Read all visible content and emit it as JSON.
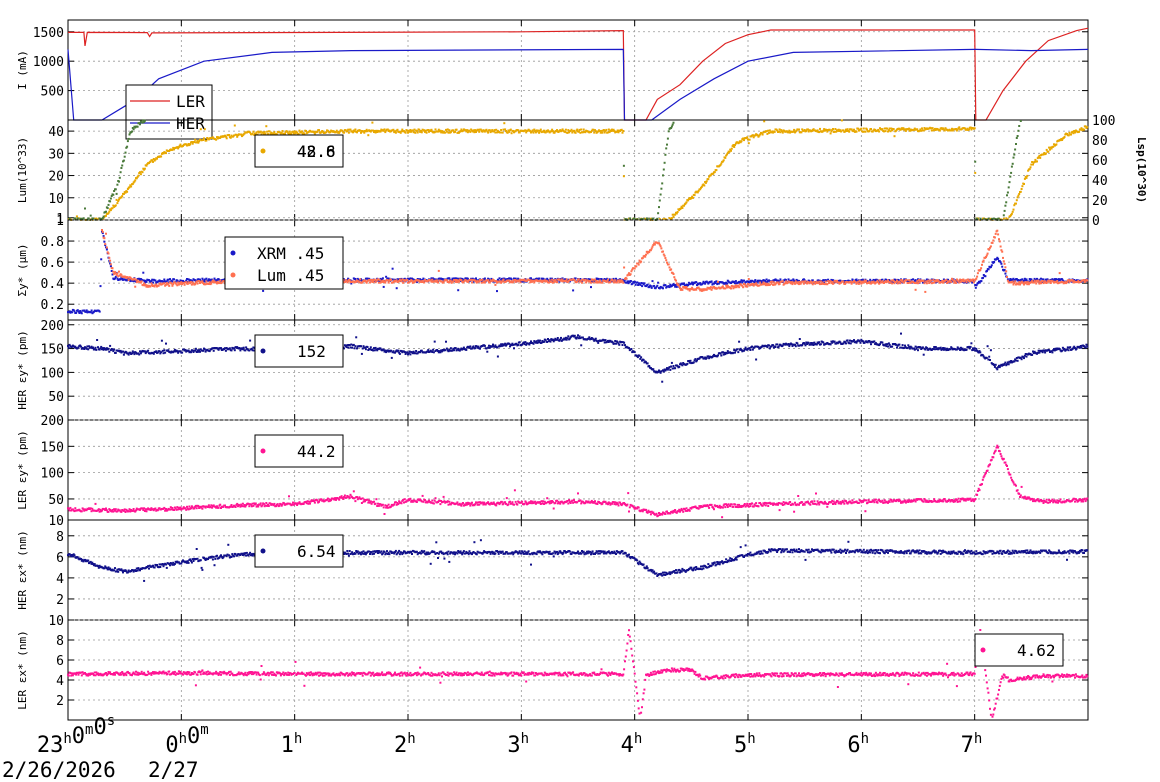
{
  "chart_data": {
    "type": "line",
    "x_ticks": [
      {
        "h": 0,
        "base": "23",
        "sup": "h",
        "base2": "0",
        "sup2": "m",
        "base3": "0",
        "sup3": "s"
      },
      {
        "h": 1,
        "base": "0",
        "sup": "h",
        "base2": "0",
        "sup2": "m"
      },
      {
        "h": 2,
        "base": "1",
        "sup": "h"
      },
      {
        "h": 3,
        "base": "2",
        "sup": "h"
      },
      {
        "h": 4,
        "base": "3",
        "sup": "h"
      },
      {
        "h": 5,
        "base": "4",
        "sup": "h"
      },
      {
        "h": 6,
        "base": "5",
        "sup": "h"
      },
      {
        "h": 7,
        "base": "6",
        "sup": "h"
      },
      {
        "h": 8,
        "base": "7",
        "sup": "h"
      }
    ],
    "dates": [
      "2/26/2026",
      "2/27"
    ],
    "xlim": [
      0,
      9.0
    ],
    "panels": [
      {
        "id": "current",
        "ylabel": "I (mA)",
        "ylim": [
          0,
          1700
        ],
        "yticks": [
          500,
          1000,
          1500
        ],
        "legend": [
          {
            "label": "LER",
            "color": "#dd2222"
          },
          {
            "label": "HER",
            "color": "#1a1ac8"
          }
        ],
        "series": [
          {
            "name": "LER",
            "color": "#dd2222",
            "style": "line",
            "points": [
              [
                0,
                1490
              ],
              [
                0.1,
                1490
              ],
              [
                0.14,
                1490
              ],
              [
                0.15,
                1260
              ],
              [
                0.17,
                1490
              ],
              [
                0.7,
                1485
              ],
              [
                0.72,
                1420
              ],
              [
                0.74,
                1480
              ],
              [
                4.0,
                1500
              ],
              [
                4.9,
                1520
              ],
              [
                4.91,
                0
              ],
              [
                5.1,
                0
              ],
              [
                5.2,
                350
              ],
              [
                5.4,
                600
              ],
              [
                5.6,
                1000
              ],
              [
                5.8,
                1300
              ],
              [
                6.0,
                1450
              ],
              [
                6.2,
                1530
              ],
              [
                7.2,
                1530
              ],
              [
                8.0,
                1530
              ],
              [
                8.01,
                0
              ],
              [
                8.1,
                0
              ],
              [
                8.25,
                500
              ],
              [
                8.45,
                1000
              ],
              [
                8.65,
                1350
              ],
              [
                8.9,
                1520
              ],
              [
                9.0,
                1560
              ]
            ]
          },
          {
            "name": "HER",
            "color": "#1a1ac8",
            "style": "line",
            "points": [
              [
                0,
                1200
              ],
              [
                0.05,
                0
              ],
              [
                0.3,
                0
              ],
              [
                0.6,
                350
              ],
              [
                0.8,
                700
              ],
              [
                1.2,
                1000
              ],
              [
                1.8,
                1150
              ],
              [
                2.5,
                1180
              ],
              [
                4.9,
                1200
              ],
              [
                4.91,
                0
              ],
              [
                5.15,
                0
              ],
              [
                5.4,
                350
              ],
              [
                5.7,
                700
              ],
              [
                6.0,
                1000
              ],
              [
                6.4,
                1150
              ],
              [
                8.0,
                1200
              ],
              [
                8.01,
                1200
              ],
              [
                8.5,
                1180
              ],
              [
                9.0,
                1200
              ]
            ]
          }
        ]
      },
      {
        "id": "lum",
        "ylabel": "Lum(10^33)",
        "y2label": "Lsp(10^30)",
        "ylim": [
          0,
          45
        ],
        "yticks": [
          1,
          10,
          20,
          30,
          40
        ],
        "y2lim": [
          0,
          100
        ],
        "y2ticks": [
          0,
          20,
          40,
          60,
          80,
          100
        ],
        "legend": [
          {
            "label": "48.8",
            "color": "#e8a800"
          },
          {
            "label": "42.6",
            "color": "#e8a800"
          }
        ],
        "series": [
          {
            "name": "Lum",
            "color": "#e8a800",
            "style": "dots",
            "points": [
              [
                0,
                0
              ],
              [
                0.3,
                0
              ],
              [
                0.5,
                12
              ],
              [
                0.7,
                25
              ],
              [
                0.9,
                32
              ],
              [
                1.2,
                36
              ],
              [
                1.6,
                39
              ],
              [
                2.5,
                40
              ],
              [
                4.9,
                40
              ],
              [
                4.91,
                0
              ],
              [
                5.3,
                0
              ],
              [
                5.6,
                15
              ],
              [
                5.9,
                35
              ],
              [
                6.2,
                40
              ],
              [
                8.0,
                41
              ],
              [
                8.01,
                0
              ],
              [
                8.3,
                0
              ],
              [
                8.5,
                25
              ],
              [
                8.8,
                38
              ],
              [
                9.0,
                42
              ]
            ]
          },
          {
            "name": "Lsp",
            "color": "#4a7a3a",
            "style": "dots",
            "points": [
              [
                0,
                0
              ],
              [
                0.3,
                0
              ],
              [
                0.45,
                18
              ],
              [
                0.55,
                40
              ],
              [
                0.8,
                50
              ],
              [
                1.1,
                55
              ],
              [
                1.6,
                52
              ],
              [
                4.9,
                50
              ],
              [
                4.91,
                0
              ],
              [
                5.2,
                0
              ],
              [
                5.3,
                40
              ],
              [
                5.6,
                68
              ],
              [
                5.9,
                55
              ],
              [
                6.2,
                52
              ],
              [
                8.0,
                52
              ],
              [
                8.01,
                0
              ],
              [
                8.25,
                0
              ],
              [
                8.4,
                45
              ],
              [
                8.7,
                55
              ],
              [
                9.0,
                52
              ]
            ]
          }
        ]
      },
      {
        "id": "sigma",
        "ylabel": "Σy* (μm)",
        "ylim": [
          0.05,
          1.0
        ],
        "yticks": [
          0.2,
          0.4,
          0.6,
          0.8,
          1
        ],
        "legend": [
          {
            "label": "XRM  .45",
            "color": "#1a1ac8"
          },
          {
            "label": "Lum  .45",
            "color": "#ff7050"
          }
        ],
        "series": [
          {
            "name": "XRM",
            "color": "#1a1ac8",
            "style": "dots",
            "points": [
              [
                0,
                0.13
              ],
              [
                0.28,
                0.13
              ],
              [
                0.3,
                0.9
              ],
              [
                0.4,
                0.45
              ],
              [
                0.7,
                0.42
              ],
              [
                1.5,
                0.43
              ],
              [
                4.9,
                0.43
              ],
              [
                4.91,
                0.42
              ],
              [
                5.2,
                0.36
              ],
              [
                5.6,
                0.4
              ],
              [
                6.2,
                0.42
              ],
              [
                8.0,
                0.42
              ],
              [
                8.01,
                0.36
              ],
              [
                8.2,
                0.65
              ],
              [
                8.3,
                0.43
              ],
              [
                9.0,
                0.42
              ]
            ]
          },
          {
            "name": "Lum",
            "color": "#ff7050",
            "style": "dots",
            "points": [
              [
                0.3,
                0.9
              ],
              [
                0.4,
                0.5
              ],
              [
                0.7,
                0.38
              ],
              [
                1.5,
                0.42
              ],
              [
                4.9,
                0.42
              ],
              [
                5.2,
                0.8
              ],
              [
                5.4,
                0.35
              ],
              [
                5.6,
                0.34
              ],
              [
                6.2,
                0.4
              ],
              [
                8.0,
                0.42
              ],
              [
                8.2,
                0.9
              ],
              [
                8.3,
                0.4
              ],
              [
                9.0,
                0.42
              ]
            ]
          }
        ]
      },
      {
        "id": "her_ey",
        "ylabel": "HER εy* (pm)",
        "ylim": [
          0,
          210
        ],
        "yticks": [
          50,
          100,
          150,
          200
        ],
        "legend": [
          {
            "label": "152",
            "color": "#11118a"
          }
        ],
        "series": [
          {
            "name": "HER εy*",
            "color": "#11118a",
            "style": "dots",
            "points": [
              [
                0,
                155
              ],
              [
                0.3,
                150
              ],
              [
                0.5,
                140
              ],
              [
                1.0,
                145
              ],
              [
                1.5,
                150
              ],
              [
                2.0,
                145
              ],
              [
                2.5,
                155
              ],
              [
                3.0,
                140
              ],
              [
                3.5,
                150
              ],
              [
                4.0,
                160
              ],
              [
                4.5,
                175
              ],
              [
                4.9,
                160
              ],
              [
                5.2,
                100
              ],
              [
                5.6,
                130
              ],
              [
                6.0,
                150
              ],
              [
                6.5,
                160
              ],
              [
                7.0,
                165
              ],
              [
                7.5,
                150
              ],
              [
                8.0,
                150
              ],
              [
                8.2,
                110
              ],
              [
                8.5,
                140
              ],
              [
                9.0,
                155
              ]
            ]
          }
        ]
      },
      {
        "id": "ler_ey",
        "ylabel": "LER εy* (pm)",
        "ylim": [
          10,
          200
        ],
        "yticks": [
          10,
          50,
          100,
          150,
          200
        ],
        "legend": [
          {
            "label": "44.2",
            "color": "#ff1493"
          }
        ],
        "series": [
          {
            "name": "LER εy*",
            "color": "#ff1493",
            "style": "dots",
            "points": [
              [
                0,
                30
              ],
              [
                0.5,
                28
              ],
              [
                1.0,
                32
              ],
              [
                1.5,
                38
              ],
              [
                2.0,
                40
              ],
              [
                2.5,
                55
              ],
              [
                2.8,
                35
              ],
              [
                3.0,
                48
              ],
              [
                3.5,
                40
              ],
              [
                4.0,
                42
              ],
              [
                4.5,
                45
              ],
              [
                4.9,
                40
              ],
              [
                5.2,
                20
              ],
              [
                5.6,
                35
              ],
              [
                6.2,
                40
              ],
              [
                7.0,
                45
              ],
              [
                8.0,
                48
              ],
              [
                8.2,
                150
              ],
              [
                8.4,
                55
              ],
              [
                8.6,
                45
              ],
              [
                9.0,
                48
              ]
            ]
          }
        ]
      },
      {
        "id": "her_ex",
        "ylabel": "HER εx* (nm)",
        "ylim": [
          0,
          9.5
        ],
        "yticks": [
          2,
          4,
          6,
          8
        ],
        "legend": [
          {
            "label": "6.54",
            "color": "#11118a"
          }
        ],
        "series": [
          {
            "name": "HER εx*",
            "color": "#11118a",
            "style": "dots",
            "points": [
              [
                0,
                6.3
              ],
              [
                0.3,
                5.0
              ],
              [
                0.5,
                4.6
              ],
              [
                1.0,
                5.5
              ],
              [
                1.5,
                6.2
              ],
              [
                2.0,
                6.4
              ],
              [
                4.9,
                6.4
              ],
              [
                5.2,
                4.3
              ],
              [
                5.6,
                5.0
              ],
              [
                6.0,
                6.2
              ],
              [
                6.2,
                6.6
              ],
              [
                8.0,
                6.4
              ],
              [
                9.0,
                6.5
              ]
            ]
          }
        ]
      },
      {
        "id": "ler_ex",
        "ylabel": "LER εx* (nm)",
        "ylim": [
          0,
          10
        ],
        "yticks": [
          2,
          4,
          6,
          8,
          10
        ],
        "legend": [
          {
            "label": "4.62",
            "color": "#ff1493"
          }
        ],
        "series": [
          {
            "name": "LER εx*",
            "color": "#ff1493",
            "style": "dots",
            "points": [
              [
                0,
                4.6
              ],
              [
                1.0,
                4.7
              ],
              [
                2.0,
                4.6
              ],
              [
                4.9,
                4.6
              ],
              [
                4.95,
                9
              ],
              [
                5.05,
                0
              ],
              [
                5.1,
                4.5
              ],
              [
                5.3,
                5.0
              ],
              [
                5.5,
                5.0
              ],
              [
                5.6,
                4.2
              ],
              [
                6.0,
                4.5
              ],
              [
                8.0,
                4.6
              ],
              [
                8.05,
                9
              ],
              [
                8.15,
                0
              ],
              [
                8.25,
                4.6
              ],
              [
                8.3,
                4.0
              ],
              [
                8.6,
                4.4
              ],
              [
                9.0,
                4.4
              ]
            ]
          }
        ]
      }
    ]
  }
}
